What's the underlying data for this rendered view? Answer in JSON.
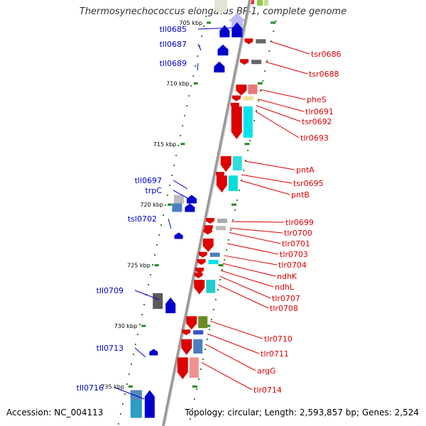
{
  "title": "Thermosynechococcus elongatus BP-1, complete genome",
  "accession": "Accession: NC_004113",
  "topology": "Topology: circular; Length: 2,593,857 bp; Genes: 2,524",
  "colors": {
    "left_strand": "#0000cc",
    "right_strand": "#dd0000",
    "ticks": "#228822",
    "backbone": "#888888"
  },
  "position_labels": [
    {
      "text": "705 kbp",
      "kbp": 705
    },
    {
      "text": "710 kbp",
      "kbp": 710
    },
    {
      "text": "715 kbp",
      "kbp": 715
    },
    {
      "text": "720 kbp",
      "kbp": 720
    },
    {
      "text": "725 kbp",
      "kbp": 725
    },
    {
      "text": "730 kbp",
      "kbp": 730
    },
    {
      "text": "735 kbp",
      "kbp": 735
    }
  ],
  "left_genes": [
    {
      "name": "tll0685",
      "start_kbp": 705.2,
      "end_kbp": 706.2
    },
    {
      "name": "tll0687",
      "start_kbp": 706.8,
      "end_kbp": 707.7
    },
    {
      "name": "tll0689",
      "start_kbp": 708.2,
      "end_kbp": 709.1
    },
    {
      "name": "tll0697",
      "start_kbp": 719.2,
      "end_kbp": 719.9
    },
    {
      "name": "trpC",
      "start_kbp": 719.9,
      "end_kbp": 720.6
    },
    {
      "name": "tsl0702",
      "start_kbp": 722.3,
      "end_kbp": 722.6
    },
    {
      "name": "tll0709",
      "start_kbp": 727.3,
      "end_kbp": 728.6
    },
    {
      "name": "tll0713",
      "start_kbp": 731.9,
      "end_kbp": 732.2
    },
    {
      "name": "tll0716",
      "start_kbp": 735.3,
      "end_kbp": 737.0
    }
  ],
  "right_genes": [
    {
      "name": "tsr0686",
      "start_kbp": 706.3,
      "end_kbp": 706.6
    },
    {
      "name": "tsr0688",
      "start_kbp": 708.0,
      "end_kbp": 708.3
    },
    {
      "name": "pheS",
      "start_kbp": 710.1,
      "end_kbp": 711.0
    },
    {
      "name": "tlr0691",
      "start_kbp": 711.0,
      "end_kbp": 711.6
    },
    {
      "name": "tsr0692",
      "start_kbp": 711.6,
      "end_kbp": 711.9
    },
    {
      "name": "tlr0693",
      "start_kbp": 711.9,
      "end_kbp": 714.6
    },
    {
      "name": "pntA",
      "start_kbp": 716.0,
      "end_kbp": 717.3
    },
    {
      "name": "tsr0695",
      "start_kbp": 717.3,
      "end_kbp": 717.6
    },
    {
      "name": "pntB",
      "start_kbp": 717.6,
      "end_kbp": 719.0
    },
    {
      "name": "tlr0699",
      "start_kbp": 721.1,
      "end_kbp": 721.7
    },
    {
      "name": "tlr0700",
      "start_kbp": 721.7,
      "end_kbp": 722.0
    },
    {
      "name": "tlr0701",
      "start_kbp": 722.0,
      "end_kbp": 722.6
    },
    {
      "name": "tlr0703",
      "start_kbp": 722.8,
      "end_kbp": 723.9
    },
    {
      "name": "tlr0704",
      "start_kbp": 723.9,
      "end_kbp": 724.5
    },
    {
      "name": "ndhK",
      "start_kbp": 724.5,
      "end_kbp": 725.2
    },
    {
      "name": "ndhL",
      "start_kbp": 725.2,
      "end_kbp": 725.6
    },
    {
      "name": "tlr0707",
      "start_kbp": 725.6,
      "end_kbp": 726.2
    },
    {
      "name": "tlr0708",
      "start_kbp": 726.2,
      "end_kbp": 727.4
    },
    {
      "name": "tlr0710",
      "start_kbp": 729.2,
      "end_kbp": 730.3
    },
    {
      "name": "tlr0711",
      "start_kbp": 730.3,
      "end_kbp": 731.0
    },
    {
      "name": "argG",
      "start_kbp": 731.1,
      "end_kbp": 732.4
    },
    {
      "name": "tlr0714",
      "start_kbp": 732.6,
      "end_kbp": 734.4
    }
  ]
}
